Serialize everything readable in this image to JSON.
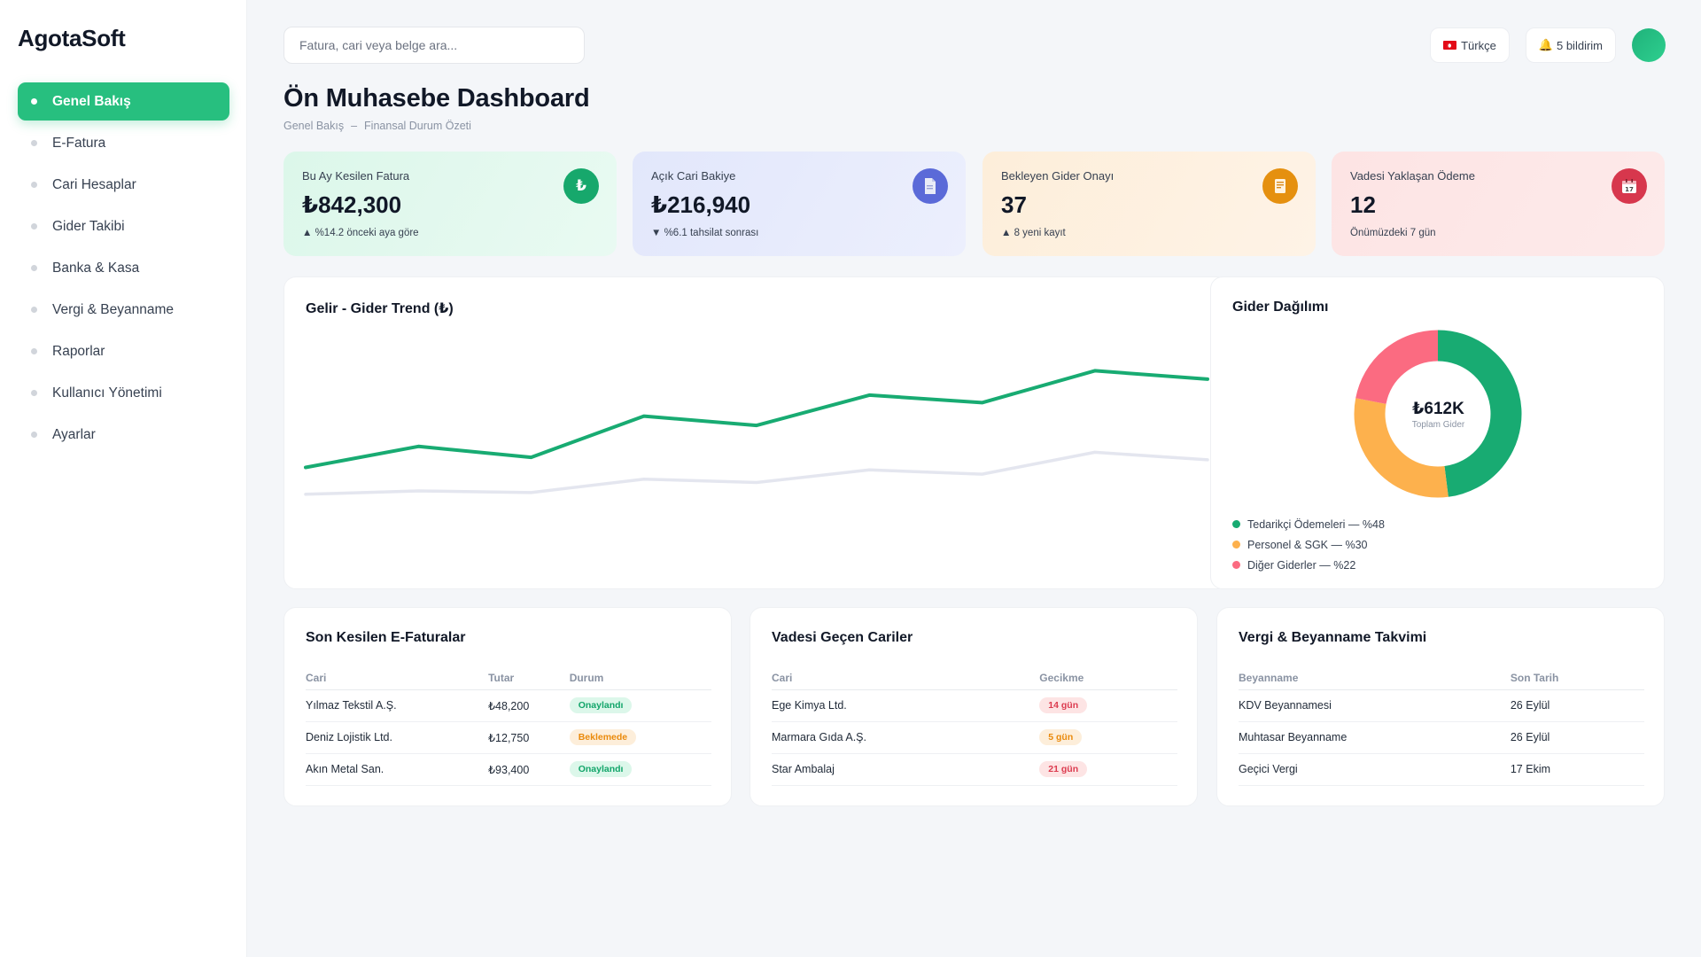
{
  "brand": "AgotaSoft",
  "sidebar": {
    "items": [
      {
        "label": "Genel Bakış",
        "active": true
      },
      {
        "label": "E-Fatura"
      },
      {
        "label": "Cari Hesaplar"
      },
      {
        "label": "Gider Takibi"
      },
      {
        "label": "Banka & Kasa"
      },
      {
        "label": "Vergi & Beyanname"
      },
      {
        "label": "Raporlar"
      },
      {
        "label": "Kullanıcı Yönetimi"
      },
      {
        "label": "Ayarlar"
      }
    ]
  },
  "topbar": {
    "search_placeholder": "Fatura, cari veya belge ara...",
    "language": "Türkçe",
    "notifications": "5 bildirim",
    "notifications_icon": "bell-icon"
  },
  "page": {
    "title": "Ön Muhasebe Dashboard",
    "breadcrumb": [
      "Genel Bakış",
      "–",
      "Finansal Durum Özeti"
    ]
  },
  "kpis": [
    {
      "label": "Bu Ay Kesilen Fatura",
      "value": "₺842,300",
      "sub": "▲ %14.2 önceki aya göre",
      "icon": "lira-icon",
      "icon_glyph": "₺",
      "color": "#17a86c"
    },
    {
      "label": "Açık Cari Bakiye",
      "value": "₺216,940",
      "sub": "▼ %6.1 tahsilat sonrası",
      "icon": "document-icon",
      "icon_glyph": "",
      "color": "#5b6ad8"
    },
    {
      "label": "Bekleyen Gider Onayı",
      "value": "37",
      "sub": "▲ 8 yeni kayıt",
      "icon": "receipt-icon",
      "icon_glyph": "",
      "color": "#e5900f"
    },
    {
      "label": "Vadesi Yaklaşan Ödeme",
      "value": "12",
      "sub": "Önümüzdeki 7 gün",
      "icon": "calendar-icon",
      "icon_glyph": "",
      "color": "#d7374d"
    }
  ],
  "trend": {
    "title": "Gelir - Gider Trend (₺)"
  },
  "chart_data": [
    {
      "type": "line",
      "title": "Gelir - Gider Trend (₺)",
      "x": [
        1,
        2,
        3,
        4,
        5,
        6,
        7,
        8,
        9
      ],
      "series": [
        {
          "values": [
            125,
            150,
            137,
            186,
            175,
            211,
            202,
            240,
            230
          ],
          "color": "#18ab72"
        },
        {
          "values": [
            93,
            97,
            95,
            111,
            107,
            122,
            117,
            143,
            134
          ],
          "color": "#e4e6ef"
        }
      ],
      "ylim": [
        0,
        290
      ],
      "grid": false
    },
    {
      "type": "pie",
      "title": "Gider Dağılımı",
      "center_value": "₺612K",
      "center_label": "Toplam Gider",
      "categories": [
        "Tedarikçi Ödemeleri",
        "Personel & SGK",
        "Diğer Giderler"
      ],
      "values": [
        48,
        30,
        22
      ],
      "colors": [
        "#18ab72",
        "#fdb14d",
        "#fb6b81"
      ],
      "legend": [
        "Tedarikçi Ödemeleri — %48",
        "Personel & SGK — %30",
        "Diğer Giderler — %22"
      ]
    }
  ],
  "invoices": {
    "title": "Son Kesilen E-Faturalar",
    "headers": [
      "Cari",
      "Tutar",
      "Durum"
    ],
    "rows": [
      {
        "cari": "Yılmaz Tekstil A.Ş.",
        "amount": "₺48,200",
        "status": "Onaylandı",
        "tone": "green"
      },
      {
        "cari": "Deniz Lojistik Ltd.",
        "amount": "₺12,750",
        "status": "Beklemede",
        "tone": "orange"
      },
      {
        "cari": "Akın Metal San.",
        "amount": "₺93,400",
        "status": "Onaylandı",
        "tone": "green"
      }
    ]
  },
  "overdue": {
    "title": "Vadesi Geçen Cariler",
    "headers": [
      "Cari",
      "Gecikme"
    ],
    "rows": [
      {
        "cari": "Ege Kimya Ltd.",
        "delay": "14 gün",
        "tone": "red"
      },
      {
        "cari": "Marmara Gıda A.Ş.",
        "delay": "5 gün",
        "tone": "orange"
      },
      {
        "cari": "Star Ambalaj",
        "delay": "21 gün",
        "tone": "red"
      }
    ]
  },
  "tax": {
    "title": "Vergi & Beyanname Takvimi",
    "headers": [
      "Beyanname",
      "Son Tarih"
    ],
    "rows": [
      {
        "name": "KDV Beyannamesi",
        "date": "26 Eylül"
      },
      {
        "name": "Muhtasar Beyanname",
        "date": "26 Eylül"
      },
      {
        "name": "Geçici Vergi",
        "date": "17 Ekim"
      }
    ]
  }
}
